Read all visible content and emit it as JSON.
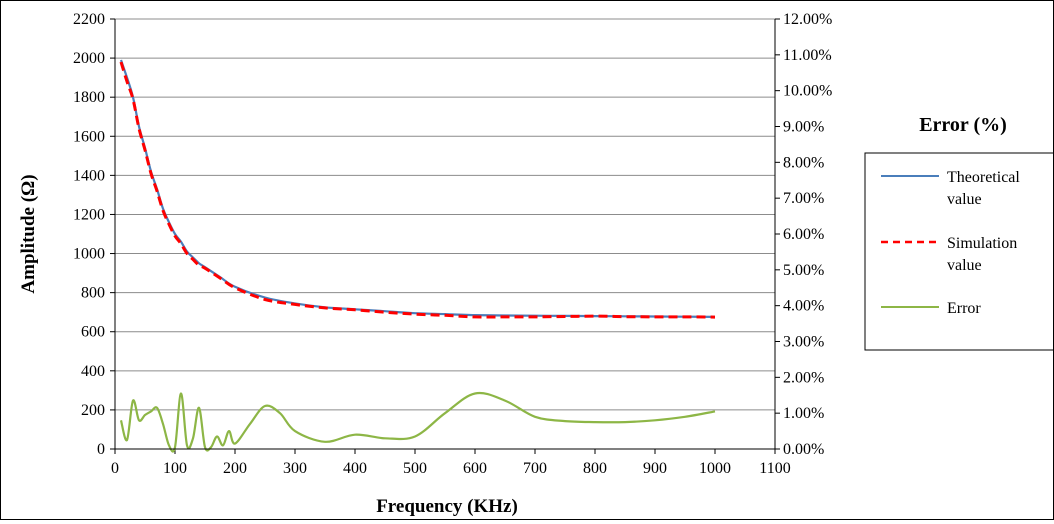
{
  "colors": {
    "theoretical": "#4a7ebb",
    "simulation": "#ff0000",
    "error": "#8db646",
    "grid": "#8c8c8c"
  },
  "chart_data": {
    "type": "line",
    "xlabel": "Frequency (KHz)",
    "ylabel": "Amplitude (Ω)",
    "y2label": "Error (%)",
    "xlim": [
      0,
      1100
    ],
    "ylim": [
      0,
      2200
    ],
    "y2lim": [
      0,
      12
    ],
    "xticks": [
      0,
      100,
      200,
      300,
      400,
      500,
      600,
      700,
      800,
      900,
      1000,
      1100
    ],
    "yticks": [
      0,
      200,
      400,
      600,
      800,
      1000,
      1200,
      1400,
      1600,
      1800,
      2000,
      2200
    ],
    "y2ticks": [
      "0.00%",
      "1.00%",
      "2.00%",
      "3.00%",
      "4.00%",
      "5.00%",
      "6.00%",
      "7.00%",
      "8.00%",
      "9.00%",
      "10.00%",
      "11.00%",
      "12.00%"
    ],
    "grid": "horizontal",
    "legend_position": "right",
    "series": [
      {
        "name": "Theoretical value",
        "axis": "left",
        "style": "solid",
        "x": [
          10,
          20,
          30,
          40,
          50,
          60,
          70,
          80,
          90,
          100,
          110,
          120,
          130,
          140,
          150,
          175,
          200,
          250,
          300,
          350,
          400,
          450,
          500,
          550,
          600,
          650,
          700,
          750,
          800,
          850,
          900,
          950,
          1000
        ],
        "values": [
          1990,
          1900,
          1800,
          1650,
          1540,
          1420,
          1330,
          1230,
          1160,
          1100,
          1060,
          1010,
          980,
          950,
          930,
          880,
          830,
          775,
          745,
          725,
          715,
          705,
          695,
          690,
          685,
          683,
          682,
          681,
          680,
          679,
          678,
          677,
          676
        ]
      },
      {
        "name": "Simulation value",
        "axis": "left",
        "style": "dashed",
        "x": [
          10,
          20,
          30,
          40,
          50,
          60,
          70,
          80,
          90,
          100,
          110,
          120,
          130,
          140,
          150,
          175,
          200,
          250,
          300,
          350,
          400,
          450,
          500,
          550,
          600,
          650,
          700,
          750,
          800,
          850,
          900,
          950,
          1000
        ],
        "values": [
          1980,
          1880,
          1790,
          1640,
          1530,
          1410,
          1320,
          1220,
          1150,
          1090,
          1050,
          1000,
          970,
          940,
          925,
          875,
          825,
          765,
          740,
          722,
          712,
          700,
          690,
          684,
          676,
          676,
          676,
          678,
          680,
          677,
          676,
          676,
          675
        ]
      },
      {
        "name": "Error",
        "axis": "right",
        "style": "solid",
        "x": [
          10,
          20,
          30,
          40,
          50,
          60,
          70,
          80,
          90,
          100,
          110,
          120,
          130,
          140,
          150,
          160,
          170,
          180,
          190,
          200,
          225,
          250,
          275,
          300,
          350,
          400,
          450,
          500,
          550,
          600,
          650,
          700,
          750,
          800,
          850,
          900,
          950,
          1000
        ],
        "values": [
          0.8,
          0.25,
          1.35,
          0.8,
          0.95,
          1.05,
          1.15,
          0.7,
          0.1,
          0.05,
          1.55,
          0.1,
          0.3,
          1.15,
          0.05,
          0.05,
          0.35,
          0.1,
          0.5,
          0.15,
          0.7,
          1.2,
          1.0,
          0.5,
          0.2,
          0.4,
          0.3,
          0.35,
          1.0,
          1.55,
          1.35,
          0.9,
          0.78,
          0.75,
          0.75,
          0.8,
          0.9,
          1.05
        ]
      }
    ]
  }
}
